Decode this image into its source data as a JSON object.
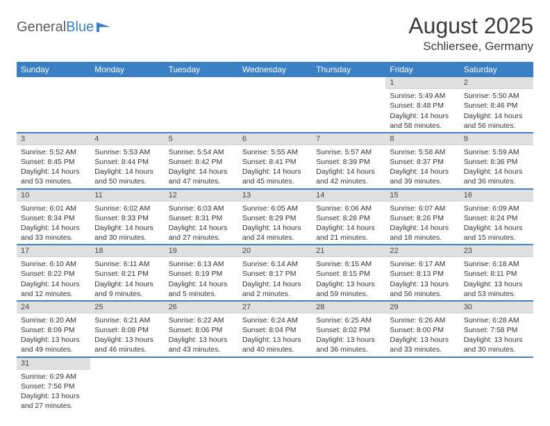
{
  "logo": {
    "general": "General",
    "blue": "Blue"
  },
  "header": {
    "title": "August 2025",
    "location": "Schliersee, Germany"
  },
  "theme": {
    "accent": "#3b7fc4",
    "header_bg": "#3b7fc4",
    "header_fg": "#ffffff",
    "daynum_bg": "#e0e0e0",
    "text": "#333333",
    "background": "#ffffff"
  },
  "days_of_week": [
    "Sunday",
    "Monday",
    "Tuesday",
    "Wednesday",
    "Thursday",
    "Friday",
    "Saturday"
  ],
  "weeks": [
    [
      null,
      null,
      null,
      null,
      null,
      {
        "n": "1",
        "sr": "5:49 AM",
        "ss": "8:48 PM",
        "dl": "14 hours and 58 minutes."
      },
      {
        "n": "2",
        "sr": "5:50 AM",
        "ss": "8:46 PM",
        "dl": "14 hours and 56 minutes."
      }
    ],
    [
      {
        "n": "3",
        "sr": "5:52 AM",
        "ss": "8:45 PM",
        "dl": "14 hours and 53 minutes."
      },
      {
        "n": "4",
        "sr": "5:53 AM",
        "ss": "8:44 PM",
        "dl": "14 hours and 50 minutes."
      },
      {
        "n": "5",
        "sr": "5:54 AM",
        "ss": "8:42 PM",
        "dl": "14 hours and 47 minutes."
      },
      {
        "n": "6",
        "sr": "5:55 AM",
        "ss": "8:41 PM",
        "dl": "14 hours and 45 minutes."
      },
      {
        "n": "7",
        "sr": "5:57 AM",
        "ss": "8:39 PM",
        "dl": "14 hours and 42 minutes."
      },
      {
        "n": "8",
        "sr": "5:58 AM",
        "ss": "8:37 PM",
        "dl": "14 hours and 39 minutes."
      },
      {
        "n": "9",
        "sr": "5:59 AM",
        "ss": "8:36 PM",
        "dl": "14 hours and 36 minutes."
      }
    ],
    [
      {
        "n": "10",
        "sr": "6:01 AM",
        "ss": "8:34 PM",
        "dl": "14 hours and 33 minutes."
      },
      {
        "n": "11",
        "sr": "6:02 AM",
        "ss": "8:33 PM",
        "dl": "14 hours and 30 minutes."
      },
      {
        "n": "12",
        "sr": "6:03 AM",
        "ss": "8:31 PM",
        "dl": "14 hours and 27 minutes."
      },
      {
        "n": "13",
        "sr": "6:05 AM",
        "ss": "8:29 PM",
        "dl": "14 hours and 24 minutes."
      },
      {
        "n": "14",
        "sr": "6:06 AM",
        "ss": "8:28 PM",
        "dl": "14 hours and 21 minutes."
      },
      {
        "n": "15",
        "sr": "6:07 AM",
        "ss": "8:26 PM",
        "dl": "14 hours and 18 minutes."
      },
      {
        "n": "16",
        "sr": "6:09 AM",
        "ss": "8:24 PM",
        "dl": "14 hours and 15 minutes."
      }
    ],
    [
      {
        "n": "17",
        "sr": "6:10 AM",
        "ss": "8:22 PM",
        "dl": "14 hours and 12 minutes."
      },
      {
        "n": "18",
        "sr": "6:11 AM",
        "ss": "8:21 PM",
        "dl": "14 hours and 9 minutes."
      },
      {
        "n": "19",
        "sr": "6:13 AM",
        "ss": "8:19 PM",
        "dl": "14 hours and 5 minutes."
      },
      {
        "n": "20",
        "sr": "6:14 AM",
        "ss": "8:17 PM",
        "dl": "14 hours and 2 minutes."
      },
      {
        "n": "21",
        "sr": "6:15 AM",
        "ss": "8:15 PM",
        "dl": "13 hours and 59 minutes."
      },
      {
        "n": "22",
        "sr": "6:17 AM",
        "ss": "8:13 PM",
        "dl": "13 hours and 56 minutes."
      },
      {
        "n": "23",
        "sr": "6:18 AM",
        "ss": "8:11 PM",
        "dl": "13 hours and 53 minutes."
      }
    ],
    [
      {
        "n": "24",
        "sr": "6:20 AM",
        "ss": "8:09 PM",
        "dl": "13 hours and 49 minutes."
      },
      {
        "n": "25",
        "sr": "6:21 AM",
        "ss": "8:08 PM",
        "dl": "13 hours and 46 minutes."
      },
      {
        "n": "26",
        "sr": "6:22 AM",
        "ss": "8:06 PM",
        "dl": "13 hours and 43 minutes."
      },
      {
        "n": "27",
        "sr": "6:24 AM",
        "ss": "8:04 PM",
        "dl": "13 hours and 40 minutes."
      },
      {
        "n": "28",
        "sr": "6:25 AM",
        "ss": "8:02 PM",
        "dl": "13 hours and 36 minutes."
      },
      {
        "n": "29",
        "sr": "6:26 AM",
        "ss": "8:00 PM",
        "dl": "13 hours and 33 minutes."
      },
      {
        "n": "30",
        "sr": "6:28 AM",
        "ss": "7:58 PM",
        "dl": "13 hours and 30 minutes."
      }
    ],
    [
      {
        "n": "31",
        "sr": "6:29 AM",
        "ss": "7:56 PM",
        "dl": "13 hours and 27 minutes."
      },
      null,
      null,
      null,
      null,
      null,
      null
    ]
  ],
  "labels": {
    "sunrise": "Sunrise:",
    "sunset": "Sunset:",
    "daylight": "Daylight:"
  }
}
